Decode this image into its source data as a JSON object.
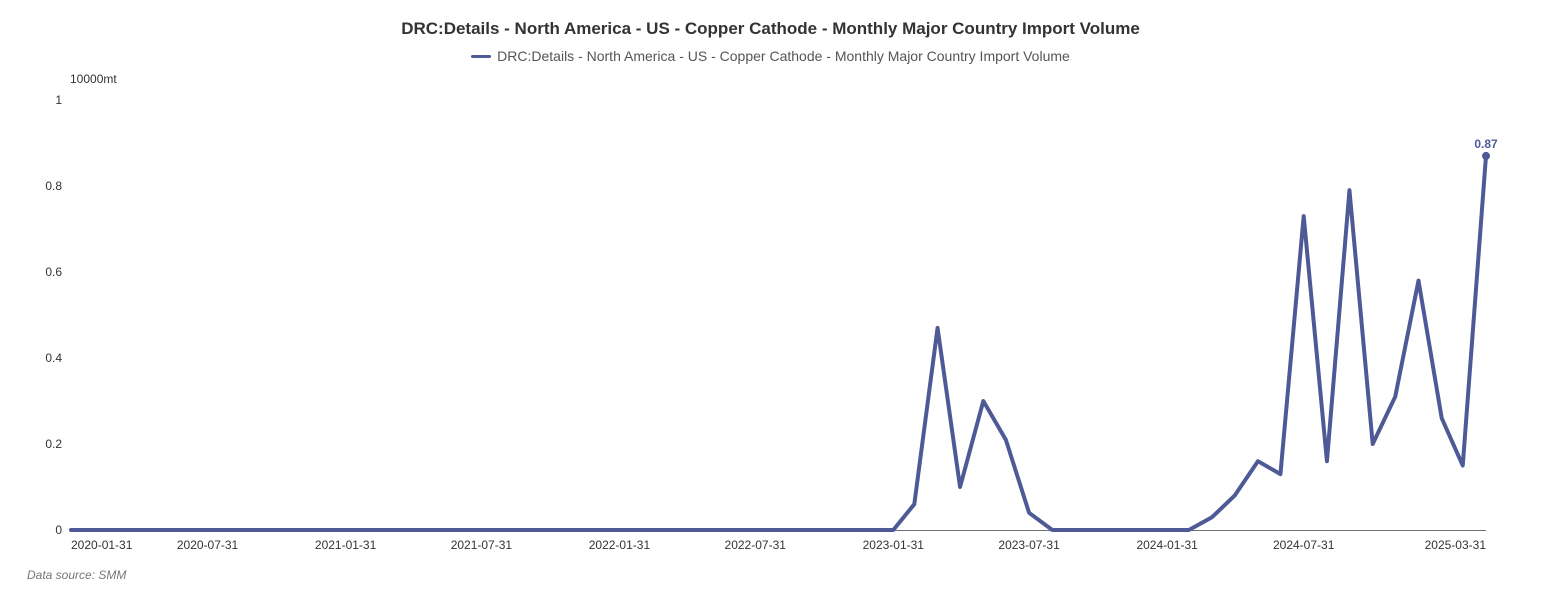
{
  "chart_data": {
    "type": "line",
    "title": "DRC:Details - North America - US - Copper Cathode - Monthly Major Country Import Volume",
    "unit_label": "10000mt",
    "ylim": [
      0,
      1
    ],
    "y_ticks": [
      0,
      0.2,
      0.4,
      0.6,
      0.8,
      1
    ],
    "y_tick_labels": [
      "0",
      "0.2",
      "0.4",
      "0.6",
      "0.8",
      "1"
    ],
    "x_tick_labels": [
      "2020-01-31",
      "2020-07-31",
      "2021-01-31",
      "2021-07-31",
      "2022-01-31",
      "2022-07-31",
      "2023-01-31",
      "2023-07-31",
      "2024-01-31",
      "2024-07-31",
      "2025-03-31"
    ],
    "grid": false,
    "legend_position": "top-center",
    "end_label": "0.87",
    "series": [
      {
        "name": "DRC:Details - North America - US - Copper Cathode - Monthly Major Country Import Volume",
        "color": "#4e5a96",
        "points": [
          {
            "x": "2020-01-31",
            "y": 0
          },
          {
            "x": "2020-02-29",
            "y": 0
          },
          {
            "x": "2020-03-31",
            "y": 0
          },
          {
            "x": "2020-04-30",
            "y": 0
          },
          {
            "x": "2020-05-31",
            "y": 0
          },
          {
            "x": "2020-06-30",
            "y": 0
          },
          {
            "x": "2020-07-31",
            "y": 0
          },
          {
            "x": "2020-08-31",
            "y": 0
          },
          {
            "x": "2020-09-30",
            "y": 0
          },
          {
            "x": "2020-10-31",
            "y": 0
          },
          {
            "x": "2020-11-30",
            "y": 0
          },
          {
            "x": "2020-12-31",
            "y": 0
          },
          {
            "x": "2021-01-31",
            "y": 0
          },
          {
            "x": "2021-02-28",
            "y": 0
          },
          {
            "x": "2021-03-31",
            "y": 0
          },
          {
            "x": "2021-04-30",
            "y": 0
          },
          {
            "x": "2021-05-31",
            "y": 0
          },
          {
            "x": "2021-06-30",
            "y": 0
          },
          {
            "x": "2021-07-31",
            "y": 0
          },
          {
            "x": "2021-08-31",
            "y": 0
          },
          {
            "x": "2021-09-30",
            "y": 0
          },
          {
            "x": "2021-10-31",
            "y": 0
          },
          {
            "x": "2021-11-30",
            "y": 0
          },
          {
            "x": "2021-12-31",
            "y": 0
          },
          {
            "x": "2022-01-31",
            "y": 0
          },
          {
            "x": "2022-02-28",
            "y": 0
          },
          {
            "x": "2022-03-31",
            "y": 0
          },
          {
            "x": "2022-04-30",
            "y": 0
          },
          {
            "x": "2022-05-31",
            "y": 0
          },
          {
            "x": "2022-06-30",
            "y": 0
          },
          {
            "x": "2022-07-31",
            "y": 0
          },
          {
            "x": "2022-08-31",
            "y": 0
          },
          {
            "x": "2022-09-30",
            "y": 0
          },
          {
            "x": "2022-10-31",
            "y": 0
          },
          {
            "x": "2022-11-30",
            "y": 0
          },
          {
            "x": "2022-12-31",
            "y": 0
          },
          {
            "x": "2023-01-31",
            "y": 0
          },
          {
            "x": "2023-02-28",
            "y": 0.06
          },
          {
            "x": "2023-03-31",
            "y": 0.47
          },
          {
            "x": "2023-04-30",
            "y": 0.1
          },
          {
            "x": "2023-05-31",
            "y": 0.3
          },
          {
            "x": "2023-06-30",
            "y": 0.21
          },
          {
            "x": "2023-07-31",
            "y": 0.04
          },
          {
            "x": "2023-08-31",
            "y": 0
          },
          {
            "x": "2023-09-30",
            "y": 0
          },
          {
            "x": "2023-10-31",
            "y": 0
          },
          {
            "x": "2023-11-30",
            "y": 0
          },
          {
            "x": "2023-12-31",
            "y": 0
          },
          {
            "x": "2024-01-31",
            "y": 0
          },
          {
            "x": "2024-02-29",
            "y": 0
          },
          {
            "x": "2024-03-31",
            "y": 0.03
          },
          {
            "x": "2024-04-30",
            "y": 0.08
          },
          {
            "x": "2024-05-31",
            "y": 0.16
          },
          {
            "x": "2024-06-30",
            "y": 0.13
          },
          {
            "x": "2024-07-31",
            "y": 0.73
          },
          {
            "x": "2024-08-31",
            "y": 0.16
          },
          {
            "x": "2024-09-30",
            "y": 0.79
          },
          {
            "x": "2024-10-31",
            "y": 0.2
          },
          {
            "x": "2024-11-30",
            "y": 0.31
          },
          {
            "x": "2024-12-31",
            "y": 0.58
          },
          {
            "x": "2025-01-31",
            "y": 0.26
          },
          {
            "x": "2025-02-28",
            "y": 0.15
          },
          {
            "x": "2025-03-31",
            "y": 0.87
          }
        ]
      }
    ]
  },
  "source_note": "Data source:  SMM"
}
